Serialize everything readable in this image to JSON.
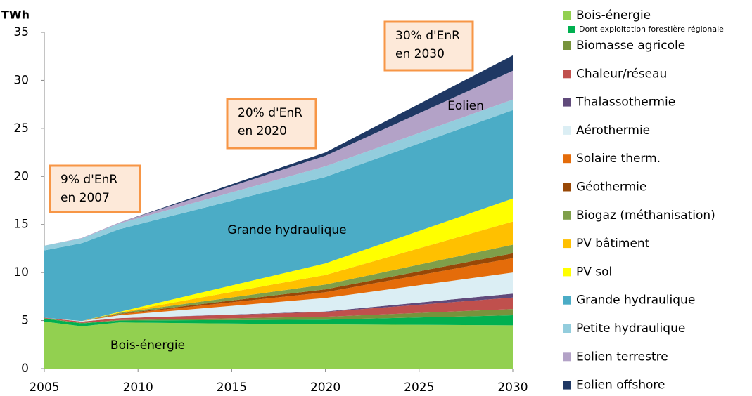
{
  "chart_data": {
    "type": "stacked_area",
    "y_label": "TWh",
    "x": [
      2005,
      2007,
      2009,
      2020,
      2030
    ],
    "xlim": [
      2005,
      2030
    ],
    "xticks": [
      2005,
      2010,
      2015,
      2020,
      2025,
      2030
    ],
    "ylim": [
      0,
      35
    ],
    "yticks": [
      0,
      5,
      10,
      15,
      20,
      25,
      30,
      35
    ],
    "series": [
      {
        "name": "Bois-énergie",
        "color": "#92d050",
        "values": [
          4.9,
          4.4,
          4.8,
          4.6,
          4.5
        ]
      },
      {
        "name": "Dont exploitation forestière régionale",
        "color": "#00b050",
        "values": [
          0.3,
          0.3,
          0.2,
          0.5,
          1.05
        ]
      },
      {
        "name": "Biomasse agricole",
        "color": "#77933c",
        "values": [
          0.05,
          0.05,
          0.05,
          0.3,
          0.65
        ]
      },
      {
        "name": "Chaleur/réseau",
        "color": "#c0504d",
        "values": [
          0.05,
          0.15,
          0.2,
          0.5,
          1.2
        ]
      },
      {
        "name": "Thalassothermie",
        "color": "#604a7b",
        "values": [
          0,
          0,
          0,
          0.05,
          0.4
        ]
      },
      {
        "name": "Aérothermie",
        "color": "#dbeef4",
        "values": [
          0,
          0.05,
          0.3,
          1.4,
          2.2
        ]
      },
      {
        "name": "Solaire therm.",
        "color": "#e46c0a",
        "values": [
          0,
          0,
          0.1,
          0.6,
          1.5
        ]
      },
      {
        "name": "Géothermie",
        "color": "#984807",
        "values": [
          0,
          0,
          0.05,
          0.3,
          0.5
        ]
      },
      {
        "name": "Biogaz (méthanisation)",
        "color": "#7f9f4a",
        "values": [
          0,
          0,
          0.1,
          0.5,
          0.9
        ]
      },
      {
        "name": "PV bâtiment",
        "color": "#ffc000",
        "values": [
          0,
          0,
          0.05,
          1.0,
          2.4
        ]
      },
      {
        "name": "PV sol",
        "color": "#ffff00",
        "values": [
          0,
          0,
          0.05,
          1.2,
          2.4
        ]
      },
      {
        "name": "Grande hydraulique",
        "color": "#4bacc6",
        "values": [
          7.0,
          8.1,
          8.6,
          9.0,
          9.2
        ]
      },
      {
        "name": "Petite hydraulique",
        "color": "#93cddd",
        "values": [
          0.5,
          0.5,
          0.6,
          1.1,
          1.1
        ]
      },
      {
        "name": "Eolien terrestre",
        "color": "#b3a2c7",
        "values": [
          0,
          0.05,
          0.1,
          1.1,
          3.0
        ]
      },
      {
        "name": "Eolien offshore",
        "color": "#1f3864",
        "values": [
          0,
          0,
          0,
          0.35,
          1.6
        ]
      }
    ],
    "annotations": [
      {
        "lines": [
          "9% d'EnR",
          "en 2007"
        ]
      },
      {
        "lines": [
          "20% d'EnR",
          "en 2020"
        ]
      },
      {
        "lines": [
          "30% d'EnR",
          "en 2030"
        ]
      }
    ],
    "area_labels": [
      "Grande hydraulique",
      "Bois-énergie",
      "Eolien"
    ]
  }
}
